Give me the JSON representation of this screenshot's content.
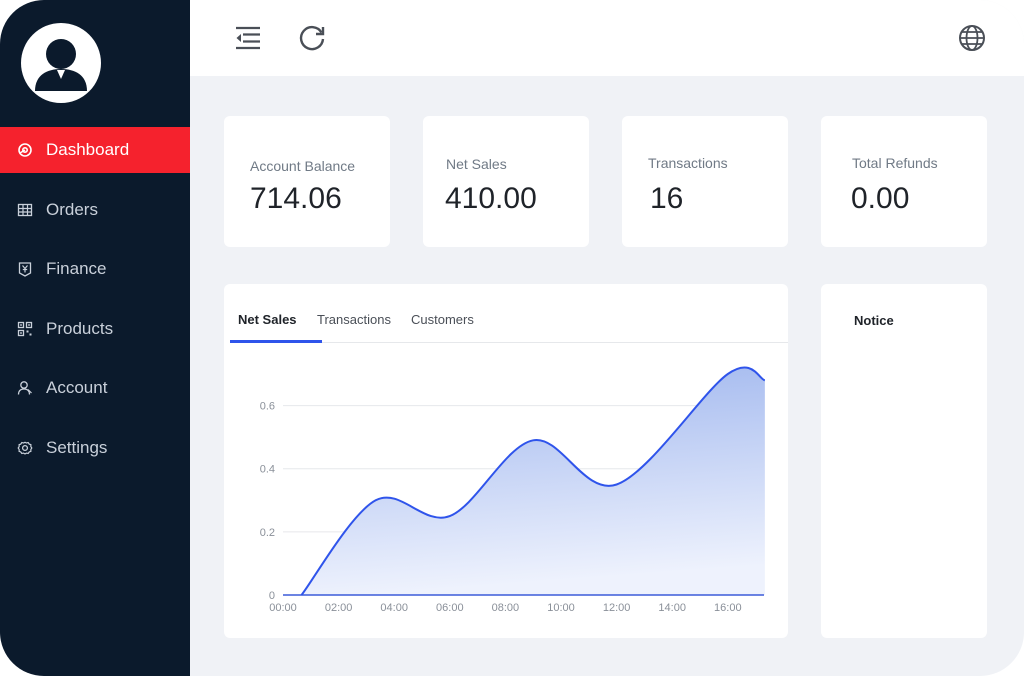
{
  "sidebar": {
    "items": [
      {
        "label": "Dashboard",
        "icon": "dashboard-icon",
        "active": true
      },
      {
        "label": "Orders",
        "icon": "grid-table-icon",
        "active": false
      },
      {
        "label": "Finance",
        "icon": "yen-ledger-icon",
        "active": false
      },
      {
        "label": "Products",
        "icon": "qrcode-icon",
        "active": false
      },
      {
        "label": "Account",
        "icon": "user-icon",
        "active": false
      },
      {
        "label": "Settings",
        "icon": "gear-icon",
        "active": false
      }
    ]
  },
  "topbar": {
    "icons": [
      "menu-fold-icon",
      "reload-icon",
      "globe-icon"
    ]
  },
  "stats": [
    {
      "label": "Account Balance",
      "value": "714.06"
    },
    {
      "label": "Net Sales",
      "value": "410.00"
    },
    {
      "label": "Transactions",
      "value": "16"
    },
    {
      "label": "Total Refunds",
      "value": "0.00"
    }
  ],
  "chart": {
    "tabs": [
      "Net Sales",
      "Transactions",
      "Customers"
    ],
    "active_tab": "Net Sales"
  },
  "notice": {
    "title": "Notice"
  },
  "colors": {
    "sidebar_bg": "#0b1a2c",
    "active_item": "#f5222d",
    "chart_line": "#2f54eb",
    "page_bg": "#f0f2f6"
  },
  "chart_data": {
    "type": "area",
    "x": [
      "00:40",
      "03:20",
      "06:00",
      "09:00",
      "12:00",
      "16:00",
      "17:20"
    ],
    "x_ticks": [
      "00:00",
      "02:00",
      "04:00",
      "06:00",
      "08:00",
      "10:00",
      "12:00",
      "14:00",
      "16:00"
    ],
    "y_ticks": [
      "0",
      "0.2",
      "0.4",
      "0.6"
    ],
    "ylim": [
      0,
      0.7
    ],
    "series": [
      {
        "values": [
          0,
          0.3,
          0.25,
          0.49,
          0.35,
          0.7,
          0.68
        ]
      }
    ],
    "grid": true
  }
}
